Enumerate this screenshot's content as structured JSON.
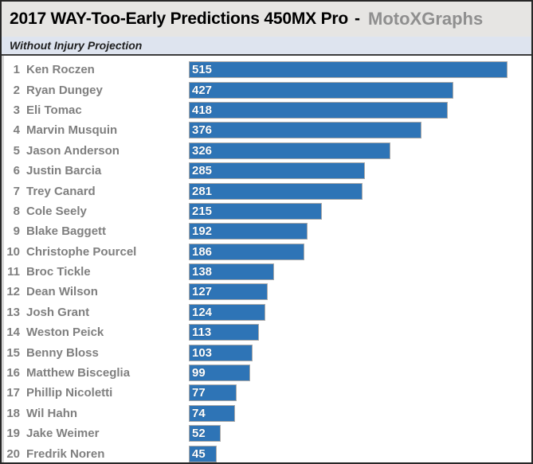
{
  "header": {
    "title": "2017 WAY-Too-Early Predictions 450MX Pro",
    "separator": "-",
    "brand": "MotoXGraphs"
  },
  "subtitle": "Without Injury Projection",
  "colors": {
    "frame_border": "#272727",
    "header_bg": "#e6e5e3",
    "title_text": "#000000",
    "brand_text": "#8f8f8f",
    "subtitle_bg": "#dee4ef",
    "subtitle_rule": "#3c3c3c",
    "rider_text": "#7f7f7f",
    "bar_fill": "#2e74b6",
    "bar_border": "#a8a8a8",
    "value_text": "#ffffff"
  },
  "chart_data": {
    "type": "bar",
    "orientation": "horizontal",
    "title": "2017 WAY-Too-Early Predictions 450MX Pro - MotoXGraphs",
    "subtitle": "Without Injury Projection",
    "ranks": [
      1,
      2,
      3,
      4,
      5,
      6,
      7,
      8,
      9,
      10,
      11,
      12,
      13,
      14,
      15,
      16,
      17,
      18,
      19,
      20
    ],
    "categories": [
      "Ken Roczen",
      "Ryan Dungey",
      "Eli Tomac",
      "Marvin Musquin",
      "Jason Anderson",
      "Justin Barcia",
      "Trey Canard",
      "Cole Seely",
      "Blake Baggett",
      "Christophe Pourcel",
      "Broc Tickle",
      "Dean Wilson",
      "Josh Grant",
      "Weston Peick",
      "Benny Bloss",
      "Matthew Bisceglia",
      "Phillip Nicoletti",
      "Wil Hahn",
      "Jake Weimer",
      "Fredrik Noren"
    ],
    "values": [
      515,
      427,
      418,
      376,
      326,
      285,
      281,
      215,
      192,
      186,
      138,
      127,
      124,
      113,
      103,
      99,
      77,
      74,
      52,
      45
    ],
    "xlim": [
      0,
      515
    ],
    "value_labels_position": "inside-left",
    "grid": false,
    "legend": false
  }
}
